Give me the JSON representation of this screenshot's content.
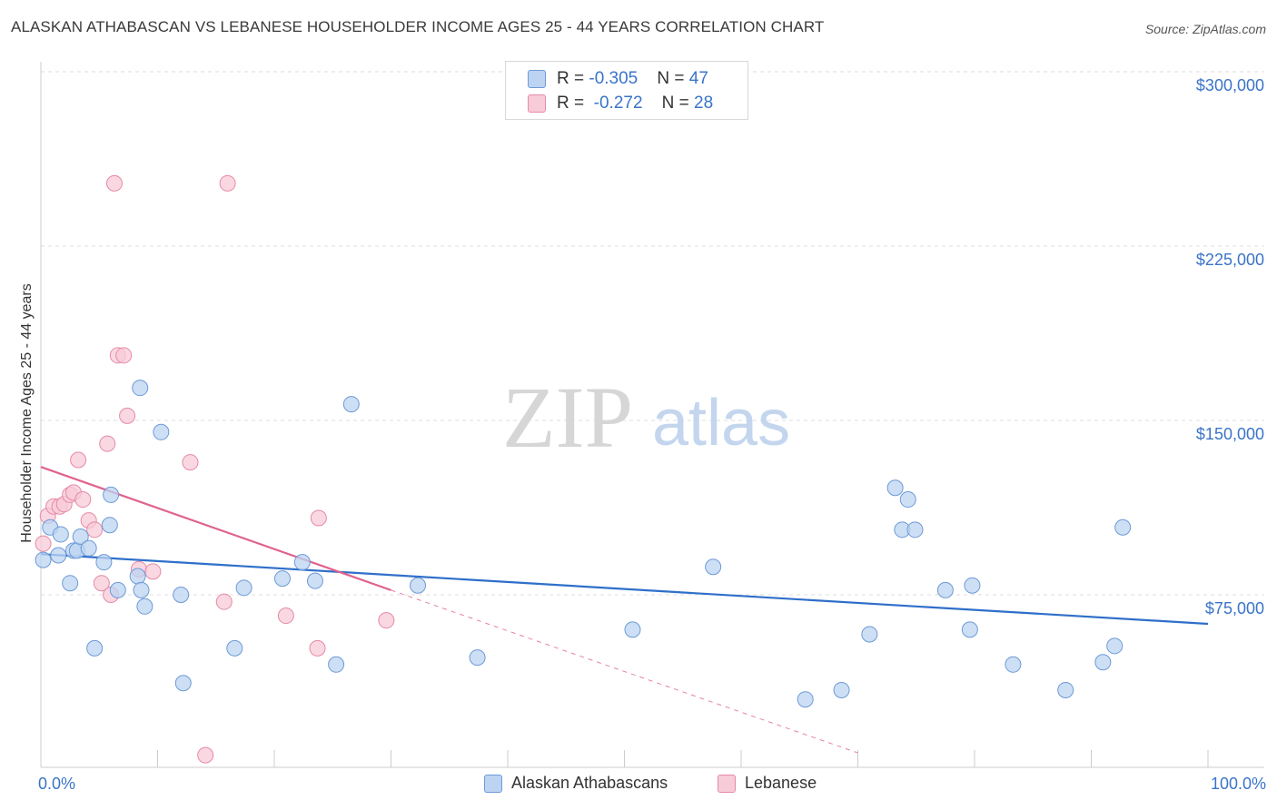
{
  "header": {
    "title": "ALASKAN ATHABASCAN VS LEBANESE HOUSEHOLDER INCOME AGES 25 - 44 YEARS CORRELATION CHART",
    "source": "Source: ZipAtlas.com"
  },
  "watermark": {
    "zip": "ZIP",
    "atlas": "atlas"
  },
  "legend": [
    {
      "r_label": "R = ",
      "r_value": "-0.305",
      "n_label": "N = ",
      "n_value": "47",
      "color": "#a9c8ee"
    },
    {
      "r_label": "R = ",
      "r_value": "-0.272",
      "n_label": "N = ",
      "n_value": "28",
      "color": "#f6bfd0"
    }
  ],
  "colors": {
    "blue_fill": "#bcd4f2",
    "blue_stroke": "#6d9ad6",
    "blue_line": "#2f6fc9",
    "pink_fill": "#f8cbd8",
    "pink_stroke": "#e58aa6",
    "pink_line": "#e0628e",
    "grid": "#dcdcdc",
    "tick_text": "#3a74c9"
  },
  "chart_data": {
    "type": "scatter",
    "title": "ALASKAN ATHABASCAN VS LEBANESE HOUSEHOLDER INCOME AGES 25 - 44 YEARS CORRELATION CHART",
    "xlabel": "",
    "ylabel": "Householder Income Ages 25 - 44 years",
    "xlim": [
      0,
      100
    ],
    "ylim": [
      0,
      300000
    ],
    "x_tick_labels": [
      "0.0%",
      "100.0%"
    ],
    "y_ticks": [
      75000,
      150000,
      225000,
      300000
    ],
    "y_tick_labels": [
      "$75,000",
      "$150,000",
      "$225,000",
      "$300,000"
    ],
    "grid": true,
    "legend_position": "top-center",
    "series": [
      {
        "name": "Alaskan Athabascans",
        "R": -0.305,
        "N": 47,
        "points": [
          [
            0.2,
            90000
          ],
          [
            0.8,
            104000
          ],
          [
            1.5,
            92000
          ],
          [
            1.7,
            101000
          ],
          [
            2.5,
            80000
          ],
          [
            2.8,
            94000
          ],
          [
            3.1,
            94000
          ],
          [
            3.4,
            100000
          ],
          [
            4.1,
            95000
          ],
          [
            4.6,
            52000
          ],
          [
            5.4,
            89000
          ],
          [
            5.9,
            105000
          ],
          [
            6.0,
            118000
          ],
          [
            6.6,
            77000
          ],
          [
            8.3,
            83000
          ],
          [
            8.6,
            77000
          ],
          [
            8.9,
            70000
          ],
          [
            8.5,
            164000
          ],
          [
            10.3,
            145000
          ],
          [
            12.0,
            75000
          ],
          [
            12.2,
            37000
          ],
          [
            16.6,
            52000
          ],
          [
            17.4,
            78000
          ],
          [
            20.7,
            82000
          ],
          [
            22.4,
            89000
          ],
          [
            23.5,
            81000
          ],
          [
            25.3,
            45000
          ],
          [
            26.6,
            157000
          ],
          [
            32.3,
            79000
          ],
          [
            37.4,
            48000
          ],
          [
            50.7,
            60000
          ],
          [
            57.6,
            87000
          ],
          [
            65.5,
            30000
          ],
          [
            68.6,
            34000
          ],
          [
            71.0,
            58000
          ],
          [
            73.2,
            121000
          ],
          [
            74.3,
            116000
          ],
          [
            73.8,
            103000
          ],
          [
            74.9,
            103000
          ],
          [
            77.5,
            77000
          ],
          [
            79.6,
            60000
          ],
          [
            79.8,
            79000
          ],
          [
            83.3,
            45000
          ],
          [
            87.8,
            34000
          ],
          [
            91.0,
            46000
          ],
          [
            92.0,
            53000
          ],
          [
            92.7,
            104000
          ]
        ],
        "trend": {
          "x": [
            0,
            100
          ],
          "y": [
            92500,
            62500
          ]
        }
      },
      {
        "name": "Lebanese",
        "R": -0.272,
        "N": 28,
        "points": [
          [
            0.2,
            97000
          ],
          [
            0.6,
            109000
          ],
          [
            1.1,
            113000
          ],
          [
            1.6,
            113000
          ],
          [
            2.0,
            114000
          ],
          [
            2.5,
            118000
          ],
          [
            2.8,
            119000
          ],
          [
            3.2,
            133000
          ],
          [
            3.6,
            116000
          ],
          [
            4.1,
            107000
          ],
          [
            4.6,
            103000
          ],
          [
            5.2,
            80000
          ],
          [
            5.7,
            140000
          ],
          [
            6.0,
            75000
          ],
          [
            6.3,
            252000
          ],
          [
            6.6,
            178000
          ],
          [
            7.1,
            178000
          ],
          [
            7.4,
            152000
          ],
          [
            8.4,
            86000
          ],
          [
            9.6,
            85000
          ],
          [
            12.8,
            132000
          ],
          [
            14.1,
            6000
          ],
          [
            15.7,
            72000
          ],
          [
            16.0,
            252000
          ],
          [
            21.0,
            66000
          ],
          [
            23.7,
            52000
          ],
          [
            23.8,
            108000
          ],
          [
            29.6,
            64000
          ]
        ],
        "trend_solid": {
          "x": [
            0,
            30
          ],
          "y": [
            130000,
            77000
          ]
        },
        "trend_dashed": {
          "x": [
            30,
            70
          ],
          "y": [
            77000,
            7000
          ]
        }
      }
    ]
  },
  "bottom_legend": [
    {
      "label": "Alaskan Athabascans",
      "color": "#bcd4f2"
    },
    {
      "label": "Lebanese",
      "color": "#f8cbd8"
    }
  ]
}
